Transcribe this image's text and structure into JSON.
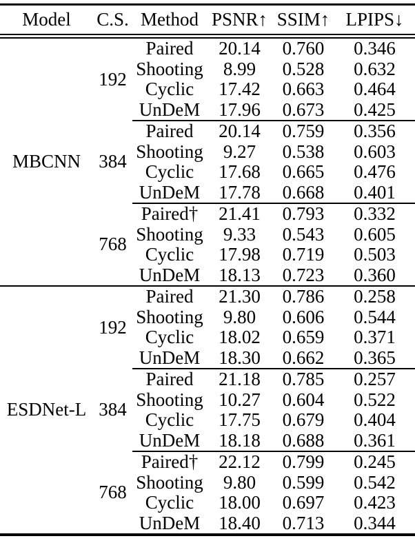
{
  "colors": {
    "background": "#ffffff",
    "text": "#000000",
    "rule": "#000000"
  },
  "table": {
    "headers": [
      "Model",
      "C.S.",
      "Method",
      "PSNR↑",
      "SSIM↑",
      "LPIPS↓"
    ],
    "models": [
      {
        "model": "MBCNN",
        "groups": [
          {
            "cs": "192",
            "rows": [
              {
                "method": "Paired",
                "psnr": "20.14",
                "ssim": "0.760",
                "lpips": "0.346"
              },
              {
                "method": "Shooting",
                "psnr": "8.99",
                "ssim": "0.528",
                "lpips": "0.632"
              },
              {
                "method": "Cyclic",
                "psnr": "17.42",
                "ssim": "0.663",
                "lpips": "0.464"
              },
              {
                "method": "UnDeM",
                "psnr": "17.96",
                "ssim": "0.673",
                "lpips": "0.425"
              }
            ]
          },
          {
            "cs": "384",
            "rows": [
              {
                "method": "Paired",
                "psnr": "20.14",
                "ssim": "0.759",
                "lpips": "0.356"
              },
              {
                "method": "Shooting",
                "psnr": "9.27",
                "ssim": "0.538",
                "lpips": "0.603"
              },
              {
                "method": "Cyclic",
                "psnr": "17.68",
                "ssim": "0.665",
                "lpips": "0.476"
              },
              {
                "method": "UnDeM",
                "psnr": "17.78",
                "ssim": "0.668",
                "lpips": "0.401"
              }
            ]
          },
          {
            "cs": "768",
            "rows": [
              {
                "method": "Paired†",
                "psnr": "21.41",
                "ssim": "0.793",
                "lpips": "0.332"
              },
              {
                "method": "Shooting",
                "psnr": "9.33",
                "ssim": "0.543",
                "lpips": "0.605"
              },
              {
                "method": "Cyclic",
                "psnr": "17.98",
                "ssim": "0.719",
                "lpips": "0.503"
              },
              {
                "method": "UnDeM",
                "psnr": "18.13",
                "ssim": "0.723",
                "lpips": "0.360"
              }
            ]
          }
        ]
      },
      {
        "model": "ESDNet-L",
        "groups": [
          {
            "cs": "192",
            "rows": [
              {
                "method": "Paired",
                "psnr": "21.30",
                "ssim": "0.786",
                "lpips": "0.258"
              },
              {
                "method": "Shooting",
                "psnr": "9.80",
                "ssim": "0.606",
                "lpips": "0.544"
              },
              {
                "method": "Cyclic",
                "psnr": "18.02",
                "ssim": "0.659",
                "lpips": "0.371"
              },
              {
                "method": "UnDeM",
                "psnr": "18.30",
                "ssim": "0.662",
                "lpips": "0.365"
              }
            ]
          },
          {
            "cs": "384",
            "rows": [
              {
                "method": "Paired",
                "psnr": "21.18",
                "ssim": "0.785",
                "lpips": "0.257"
              },
              {
                "method": "Shooting",
                "psnr": "10.27",
                "ssim": "0.604",
                "lpips": "0.522"
              },
              {
                "method": "Cyclic",
                "psnr": "17.75",
                "ssim": "0.679",
                "lpips": "0.404"
              },
              {
                "method": "UnDeM",
                "psnr": "18.18",
                "ssim": "0.688",
                "lpips": "0.361"
              }
            ]
          },
          {
            "cs": "768",
            "rows": [
              {
                "method": "Paired†",
                "psnr": "22.12",
                "ssim": "0.799",
                "lpips": "0.245"
              },
              {
                "method": "Shooting",
                "psnr": "9.80",
                "ssim": "0.599",
                "lpips": "0.542"
              },
              {
                "method": "Cyclic",
                "psnr": "18.00",
                "ssim": "0.697",
                "lpips": "0.423"
              },
              {
                "method": "UnDeM",
                "psnr": "18.40",
                "ssim": "0.713",
                "lpips": "0.344"
              }
            ]
          }
        ]
      }
    ]
  }
}
